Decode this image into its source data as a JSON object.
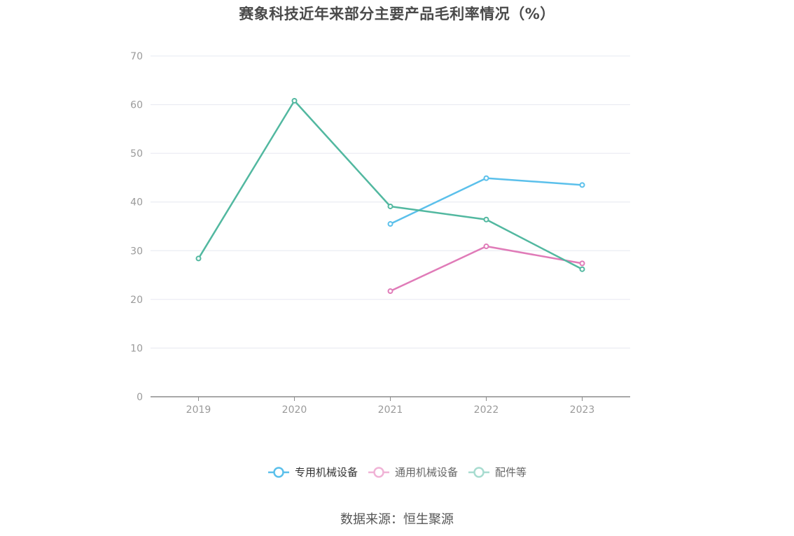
{
  "title": "赛象科技近年来部分主要产品毛利率情况（%）",
  "source": "数据来源：恒生聚源",
  "legend": [
    {
      "label": "专用机械设备",
      "color": "#5bc0eb"
    },
    {
      "label": "通用机械设备",
      "color": "#e07bb8"
    },
    {
      "label": "配件等",
      "color": "#52b8a0"
    }
  ],
  "chart_data": {
    "type": "line",
    "categories": [
      "2019",
      "2020",
      "2021",
      "2022",
      "2023"
    ],
    "ylim": [
      0,
      70
    ],
    "yticks": [
      0,
      10,
      20,
      30,
      40,
      50,
      60,
      70
    ],
    "grid": true,
    "legend_position": "bottom-center",
    "series": [
      {
        "name": "专用机械设备",
        "color": "#5bc0eb",
        "values": [
          null,
          null,
          35.5,
          44.9,
          43.5
        ]
      },
      {
        "name": "通用机械设备",
        "color": "#e07bb8",
        "values": [
          null,
          null,
          21.7,
          30.9,
          27.4
        ]
      },
      {
        "name": "配件等",
        "color": "#52b8a0",
        "values": [
          28.4,
          60.8,
          39.1,
          36.4,
          26.2
        ]
      }
    ]
  }
}
